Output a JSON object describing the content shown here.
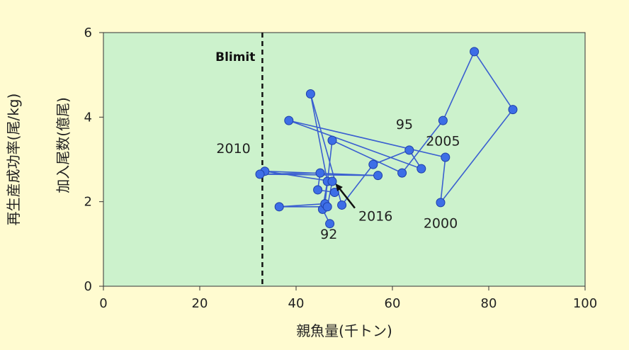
{
  "chart_data": {
    "type": "scatter",
    "xlabel": "親魚量(千トン)",
    "ylabel_outer": "再生産成功率(尾/kg)",
    "ylabel_inner": "加入尾数(億尾)",
    "xlim": [
      0,
      100
    ],
    "ylim": [
      0,
      6
    ],
    "x_ticks": [
      "0",
      "20",
      "40",
      "60",
      "80",
      "100"
    ],
    "y_ticks": [
      "0",
      "2",
      "4",
      "6"
    ],
    "grid": false,
    "colors": {
      "plot_bg": "#ccf2cc",
      "page_bg": "#fffbd0",
      "series": "#3a5fd0",
      "marker_fill": "#3d6ee6",
      "marker_stroke": "#1e3fa8",
      "threshold": "#111111"
    },
    "threshold": {
      "label": "Blimit",
      "x": 33
    },
    "series": [
      {
        "points": [
          [
            47,
            1.48
          ],
          [
            45.5,
            1.82
          ],
          [
            46.5,
            2.48
          ],
          [
            43,
            4.55
          ],
          [
            49.5,
            1.92
          ],
          [
            56,
            2.88
          ],
          [
            63.5,
            3.22
          ],
          [
            66,
            2.78
          ],
          [
            38.5,
            3.92
          ],
          [
            71,
            3.05
          ],
          [
            70,
            1.98
          ],
          [
            85,
            4.18
          ],
          [
            77,
            5.55
          ],
          [
            70.5,
            3.92
          ],
          [
            62,
            2.68
          ],
          [
            47.5,
            3.45
          ],
          [
            46,
            1.95
          ],
          [
            36.5,
            1.88
          ],
          [
            46.5,
            1.88
          ],
          [
            47.5,
            2.48
          ],
          [
            33.5,
            2.72
          ],
          [
            57,
            2.62
          ],
          [
            32.5,
            2.65
          ],
          [
            45,
            2.68
          ],
          [
            44.5,
            2.28
          ],
          [
            48,
            2.22
          ]
        ]
      }
    ],
    "annotations": [
      {
        "text": "92",
        "x": 46.8,
        "y": 1.12
      },
      {
        "text": "95",
        "x": 62.5,
        "y": 3.72
      },
      {
        "text": "2000",
        "x": 70,
        "y": 1.38
      },
      {
        "text": "2005",
        "x": 70.5,
        "y": 3.33
      },
      {
        "text": "2010",
        "x": 27,
        "y": 3.15
      },
      {
        "text": "2016",
        "x": 56.5,
        "y": 1.55
      }
    ],
    "arrow": {
      "from": [
        52.2,
        1.85
      ],
      "to": [
        48.4,
        2.4
      ]
    }
  }
}
